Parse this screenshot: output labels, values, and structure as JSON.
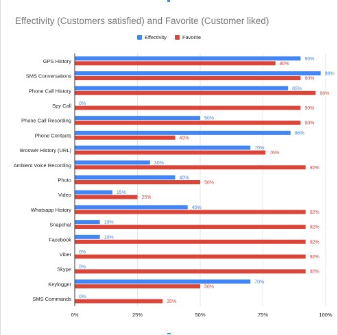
{
  "colors": {
    "effectivity": "#4285f4",
    "favorite": "#db4437",
    "grid": "#e6e6e6",
    "axis": "#333333",
    "text": "#222222",
    "title": "#757575"
  },
  "chart_data": {
    "type": "bar",
    "orientation": "horizontal",
    "title": "Effectivity (Customers satisfied) and Favorite (Customer liked)",
    "legend_position": "top",
    "grid": true,
    "xlim": [
      0,
      100
    ],
    "x_ticks": [
      "0%",
      "25%",
      "50%",
      "75%",
      "100%"
    ],
    "categories": [
      "GPS History",
      "SMS Conversations",
      "Phone Call History",
      "Spy Call",
      "Phone Call Recording",
      "Phone Contacts",
      "Broswer History (URL)",
      "Ambient Voice Recording",
      "Photo",
      "Video",
      "Whatsapp History",
      "Snapchat",
      "Facebook",
      "Viber",
      "Skype",
      "Keylogger",
      "SMS Commands"
    ],
    "series": [
      {
        "name": "Effectivity",
        "values": [
          90,
          98,
          85,
          0,
          50,
          86,
          70,
          30,
          40,
          15,
          45,
          10,
          10,
          0,
          0,
          70,
          0
        ],
        "labels": [
          "90%",
          "98%",
          "85%",
          "0%",
          "50%",
          "86%",
          "70%",
          "30%",
          "40%",
          "15%",
          "45%",
          "10%",
          "10%",
          "0%",
          "0%",
          "70%",
          "0%"
        ]
      },
      {
        "name": "Favorite",
        "values": [
          80,
          90,
          96,
          90,
          90,
          40,
          76,
          92,
          50,
          25,
          92,
          92,
          92,
          92,
          92,
          50,
          35
        ],
        "labels": [
          "80%",
          "90%",
          "96%",
          "90%",
          "90%",
          "40%",
          "76%",
          "92%",
          "50%",
          "25%",
          "92%",
          "92%",
          "92%",
          "92%",
          "92%",
          "50%",
          "35%"
        ]
      }
    ]
  }
}
